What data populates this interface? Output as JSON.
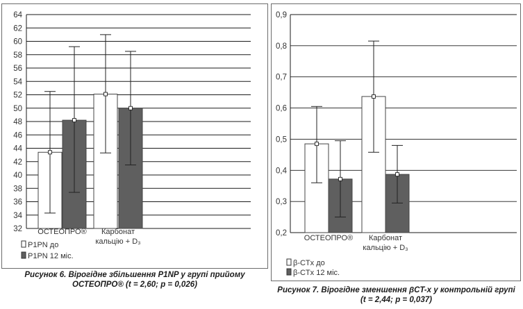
{
  "charts": [
    {
      "id": "left",
      "caption": [
        "Рисунок 6. Вірогідне збільшення P1NP у групі прийому",
        "ОСТЕОПРО® (t = 2,60; p = 0,026)"
      ],
      "chart_data": {
        "type": "bar",
        "ylim": [
          32,
          64
        ],
        "yticks": [
          32,
          34,
          36,
          38,
          40,
          42,
          44,
          46,
          48,
          50,
          52,
          54,
          56,
          58,
          60,
          62,
          64
        ],
        "decimal_comma": false,
        "grid": true,
        "legend_position": "bottom-left",
        "categories": [
          {
            "lines": [
              "ОСТЕОПРО®"
            ]
          },
          {
            "lines": [
              "Карбонат",
              "кальцію + D₃"
            ]
          }
        ],
        "series": [
          {
            "name": "P1PN до",
            "color": "#ffffff",
            "values": [
              43.4,
              52.1
            ],
            "err_low": [
              34.3,
              43.3
            ],
            "err_high": [
              52.5,
              61.0
            ]
          },
          {
            "name": "P1PN 12 міс.",
            "color": "#5f5f5f",
            "values": [
              48.2,
              50.0
            ],
            "err_low": [
              37.4,
              41.5
            ],
            "err_high": [
              59.2,
              58.5
            ]
          }
        ]
      }
    },
    {
      "id": "right",
      "caption": [
        "Рисунок 7. Вірогідне зменшення βCT-x у контрольній групі",
        "(t = 2,44; p = 0,037)"
      ],
      "chart_data": {
        "type": "bar",
        "ylim": [
          0.2,
          0.9
        ],
        "yticks": [
          0.2,
          0.3,
          0.4,
          0.5,
          0.6,
          0.7,
          0.8,
          0.9
        ],
        "decimal_comma": true,
        "grid": true,
        "legend_position": "bottom-left",
        "categories": [
          {
            "lines": [
              "ОСТЕОПРО®"
            ]
          },
          {
            "lines": [
              "Карбонат",
              "кальцію + D₃"
            ]
          }
        ],
        "series": [
          {
            "name": "β-CTx до",
            "color": "#ffffff",
            "values": [
              0.485,
              0.637
            ],
            "err_low": [
              0.36,
              0.458
            ],
            "err_high": [
              0.605,
              0.815
            ]
          },
          {
            "name": "β-CTx 12 міс.",
            "color": "#5f5f5f",
            "values": [
              0.372,
              0.387
            ],
            "err_low": [
              0.25,
              0.295
            ],
            "err_high": [
              0.495,
              0.48
            ]
          }
        ]
      }
    }
  ]
}
